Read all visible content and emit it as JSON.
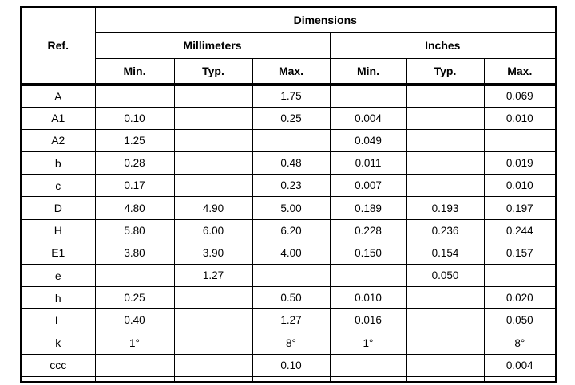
{
  "page": {
    "background": "#ffffff",
    "border_color": "#000000",
    "text_color": "#000000"
  },
  "table": {
    "title": "Dimensions",
    "ref_header": "Ref.",
    "groups": [
      {
        "label": "Millimeters",
        "sub": [
          "Min.",
          "Typ.",
          "Max."
        ]
      },
      {
        "label": "Inches",
        "sub": [
          "Min.",
          "Typ.",
          "Max."
        ]
      }
    ],
    "rows": [
      {
        "ref": "A",
        "cells": [
          "",
          "",
          "1.75",
          "",
          "",
          "0.069"
        ]
      },
      {
        "ref": "A1",
        "cells": [
          "0.10",
          "",
          "0.25",
          "0.004",
          "",
          "0.010"
        ]
      },
      {
        "ref": "A2",
        "cells": [
          "1.25",
          "",
          "",
          "0.049",
          "",
          ""
        ]
      },
      {
        "ref": "b",
        "cells": [
          "0.28",
          "",
          "0.48",
          "0.011",
          "",
          "0.019"
        ]
      },
      {
        "ref": "c",
        "cells": [
          "0.17",
          "",
          "0.23",
          "0.007",
          "",
          "0.010"
        ]
      },
      {
        "ref": "D",
        "cells": [
          "4.80",
          "4.90",
          "5.00",
          "0.189",
          "0.193",
          "0.197"
        ]
      },
      {
        "ref": "H",
        "cells": [
          "5.80",
          "6.00",
          "6.20",
          "0.228",
          "0.236",
          "0.244"
        ]
      },
      {
        "ref": "E1",
        "cells": [
          "3.80",
          "3.90",
          "4.00",
          "0.150",
          "0.154",
          "0.157"
        ]
      },
      {
        "ref": "e",
        "cells": [
          "",
          "1.27",
          "",
          "",
          "0.050",
          ""
        ]
      },
      {
        "ref": "h",
        "cells": [
          "0.25",
          "",
          "0.50",
          "0.010",
          "",
          "0.020"
        ]
      },
      {
        "ref": "L",
        "cells": [
          "0.40",
          "",
          "1.27",
          "0.016",
          "",
          "0.050"
        ]
      },
      {
        "ref": "k",
        "cells": [
          "1°",
          "",
          "8°",
          "1°",
          "",
          "8°"
        ]
      },
      {
        "ref": "ccc",
        "cells": [
          "",
          "",
          "0.10",
          "",
          "",
          "0.004"
        ]
      }
    ]
  }
}
